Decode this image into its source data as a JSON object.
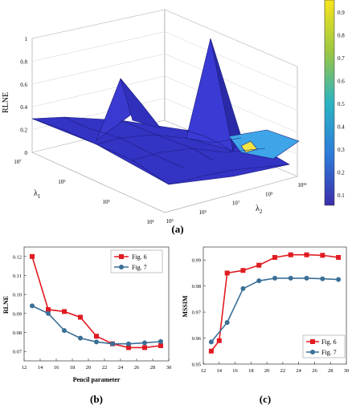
{
  "panel_labels": {
    "a": "(a)",
    "b": "(b)",
    "c": "(c)"
  },
  "colors": {
    "red": "#e11b22",
    "blue": "#3a6f96",
    "surface": "#3636c8",
    "grid": "#c8c8c8"
  },
  "chart_data": [
    {
      "type": "surface3d",
      "zlabel": "RLNE",
      "xlabel": "λ1",
      "ylabel": "λ2",
      "x_ticks": [
        "10¹",
        "10³",
        "10⁵",
        "10⁷"
      ],
      "y_ticks": [
        "10³",
        "10⁵",
        "10⁷",
        "10⁹",
        "10¹¹"
      ],
      "z_ticks": [
        "0",
        "0.2",
        "0.4",
        "0.6",
        "0.8",
        "1"
      ],
      "colorbar_ticks": [
        "0.1",
        "0.2",
        "0.3",
        "0.4",
        "0.5",
        "0.6",
        "0.7",
        "0.8",
        "0.9"
      ],
      "zlim": [
        0,
        1
      ],
      "colormap": "parula"
    },
    {
      "type": "line",
      "xlabel": "Pencil parameter",
      "ylabel": "RLNE",
      "xlim": [
        12,
        30
      ],
      "ylim": [
        0.065,
        0.125
      ],
      "x_ticks": [
        "12",
        "14",
        "16",
        "18",
        "20",
        "22",
        "24",
        "26",
        "28",
        "30"
      ],
      "y_ticks": [
        "0.07",
        "0.08",
        "0.09",
        "0.10",
        "0.11",
        "0.12"
      ],
      "legend_position": "top-right",
      "series": [
        {
          "name": "Fig. 6",
          "color": "#e11b22",
          "marker": "square",
          "x": [
            13,
            15,
            17,
            19,
            21,
            23,
            25,
            27,
            29
          ],
          "y": [
            0.12,
            0.092,
            0.091,
            0.088,
            0.078,
            0.074,
            0.072,
            0.072,
            0.073
          ]
        },
        {
          "name": "Fig. 7",
          "color": "#3a6f96",
          "marker": "circle",
          "x": [
            13,
            15,
            17,
            19,
            21,
            23,
            25,
            27,
            29
          ],
          "y": [
            0.094,
            0.09,
            0.081,
            0.077,
            0.075,
            0.074,
            0.074,
            0.0745,
            0.0752
          ]
        }
      ]
    },
    {
      "type": "line",
      "xlabel": "",
      "ylabel": "MSSIM",
      "xlim": [
        12,
        30
      ],
      "ylim": [
        0.95,
        0.995
      ],
      "x_ticks": [
        "12",
        "14",
        "16",
        "18",
        "20",
        "22",
        "24",
        "26",
        "28",
        "30"
      ],
      "x_tick_values": [
        12,
        14,
        16,
        18,
        20,
        22,
        24,
        26,
        28,
        30
      ],
      "y_ticks": [
        "0.95",
        "0.96",
        "0.97",
        "0.98",
        "0.99"
      ],
      "legend_position": "bottom-right",
      "series": [
        {
          "name": "Fig. 6",
          "color": "#e11b22",
          "marker": "square",
          "x": [
            13,
            14,
            15,
            17,
            19,
            21,
            23,
            25,
            27,
            29
          ],
          "y": [
            0.955,
            0.959,
            0.985,
            0.986,
            0.988,
            0.991,
            0.992,
            0.992,
            0.9918,
            0.991
          ]
        },
        {
          "name": "Fig. 7",
          "color": "#3a6f96",
          "marker": "circle",
          "x": [
            13,
            15,
            17,
            19,
            21,
            23,
            25,
            27,
            29
          ],
          "y": [
            0.9585,
            0.966,
            0.979,
            0.982,
            0.983,
            0.983,
            0.983,
            0.9828,
            0.9825
          ]
        }
      ]
    }
  ]
}
